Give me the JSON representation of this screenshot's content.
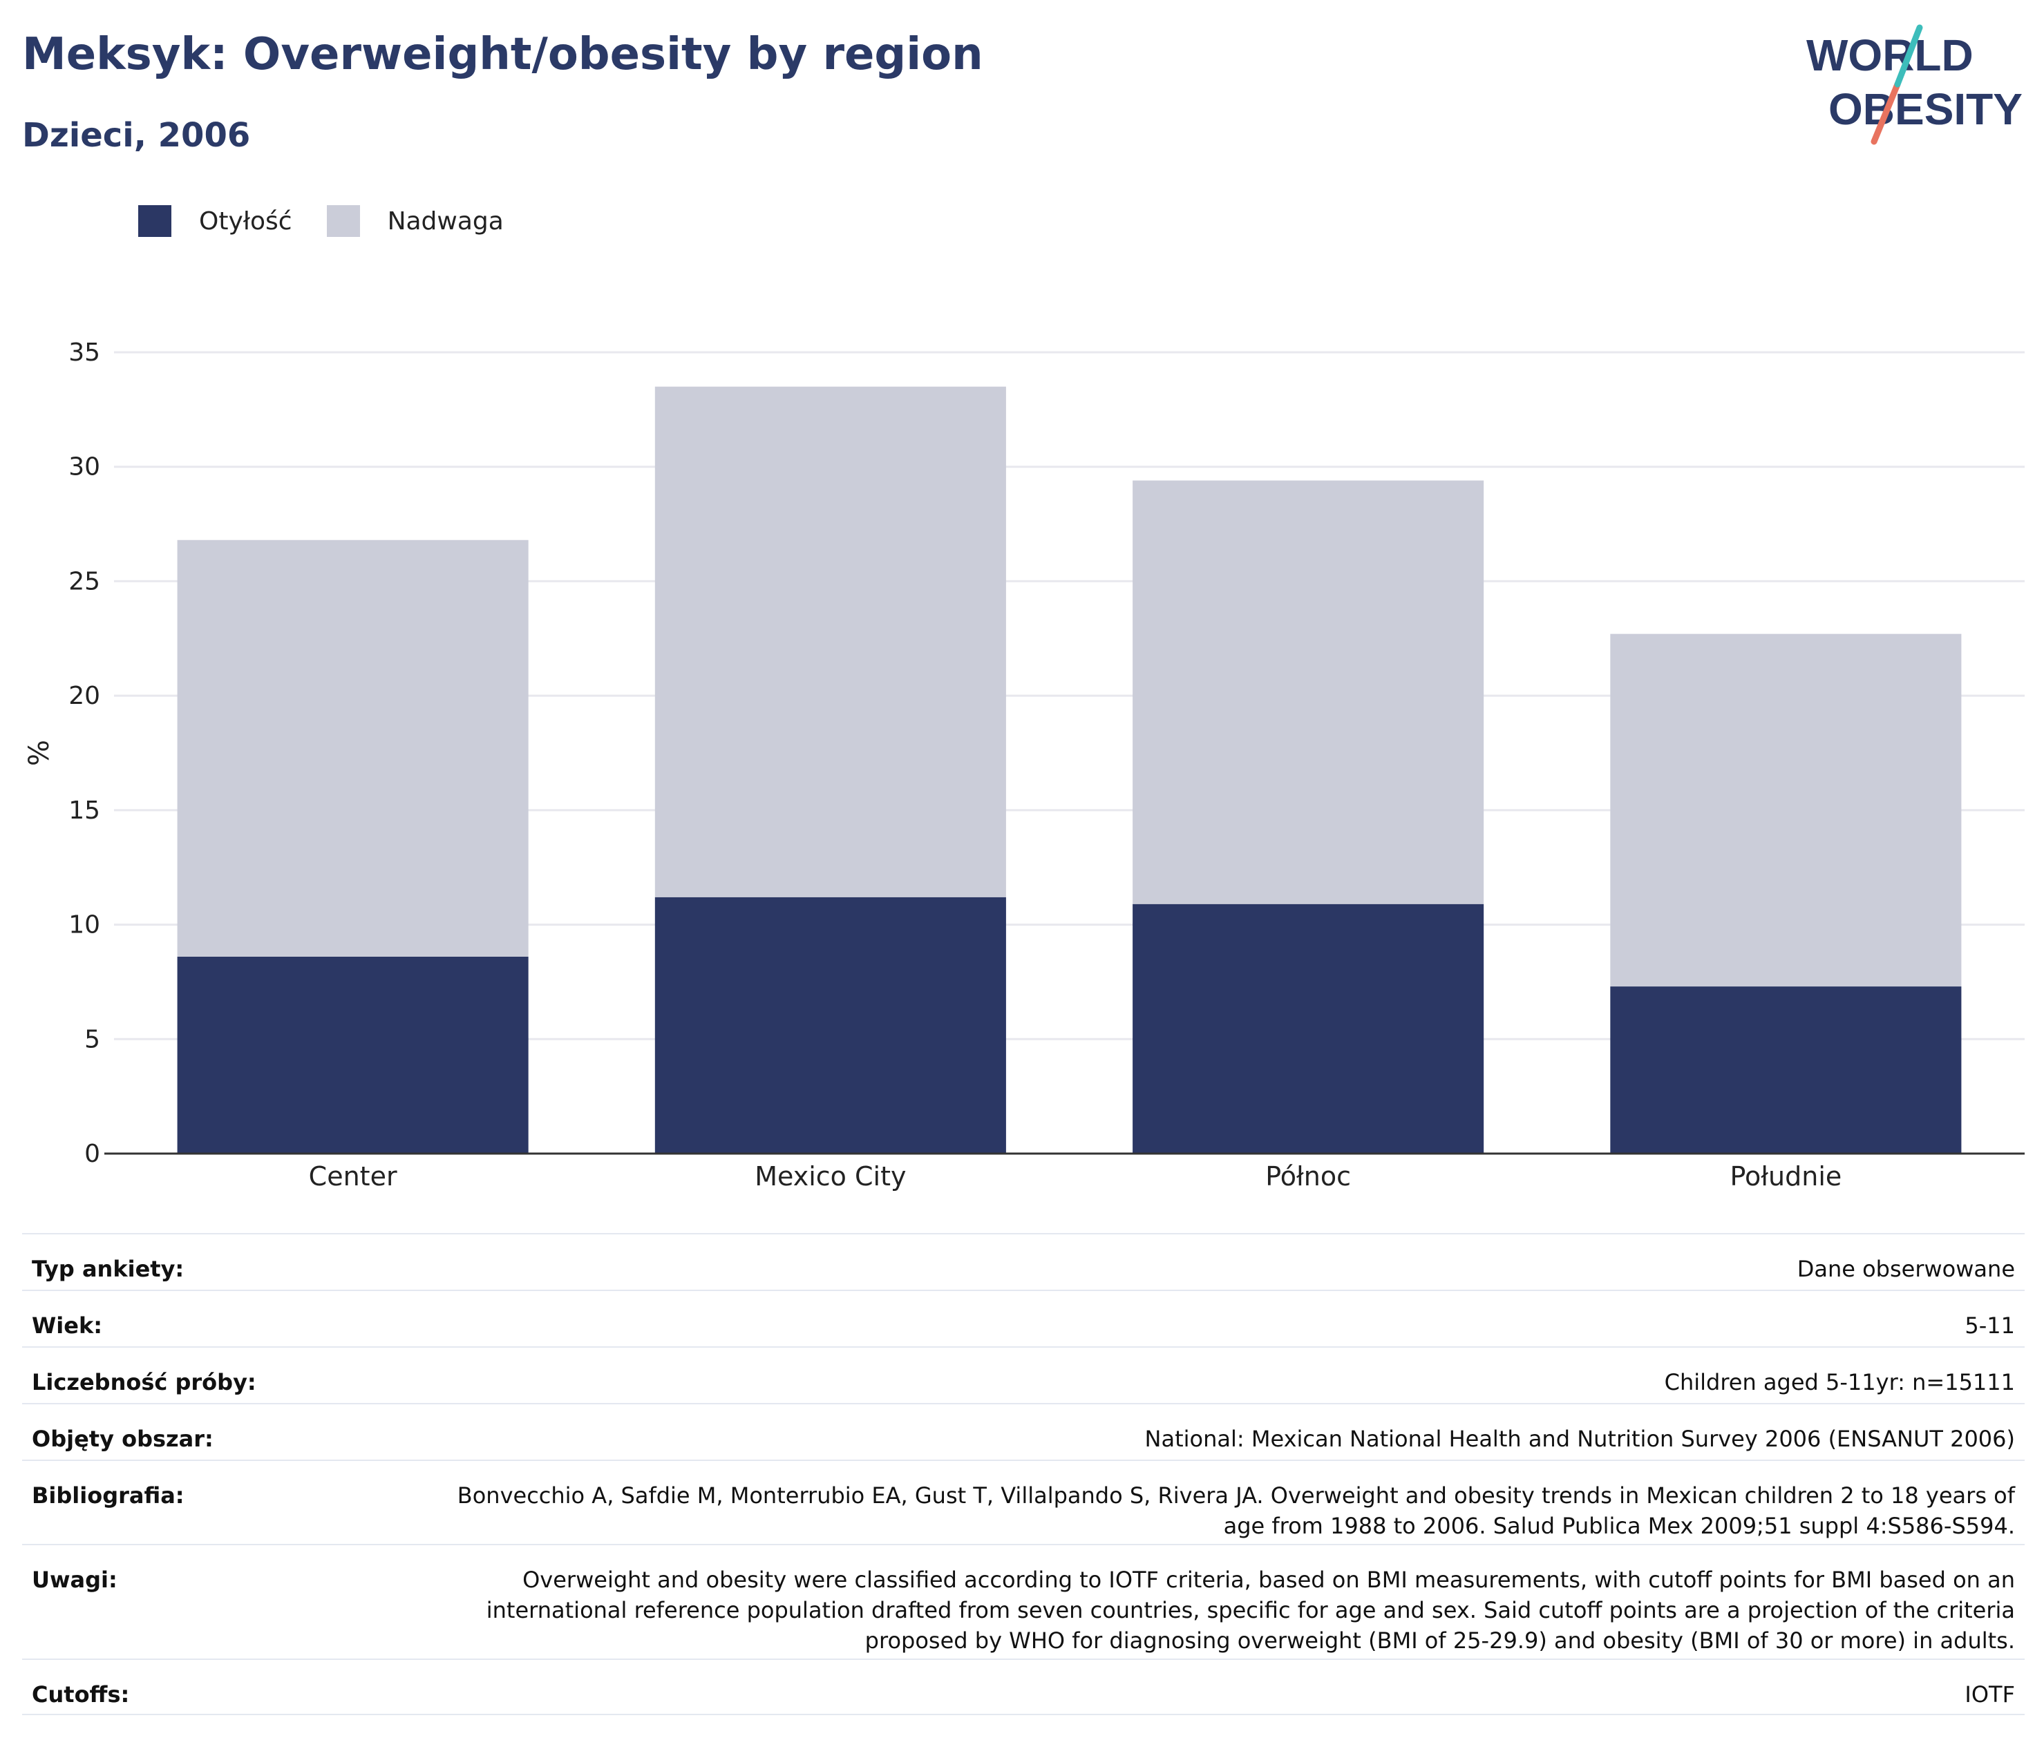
{
  "title": "Meksyk: Overweight/obesity by region",
  "subtitle": "Dzieci, 2006",
  "logo": {
    "line1": "WORLD",
    "line2": "OBESITY"
  },
  "colors": {
    "obesity": "#2b3764",
    "overweight": "#cbcdd9",
    "title": "#2b3a67",
    "grid": "#e8e8ee",
    "axis": "#333333"
  },
  "chart_data": {
    "type": "bar",
    "stacked": true,
    "categories": [
      "Center",
      "Mexico City",
      "Północ",
      "Południe"
    ],
    "series": [
      {
        "name": "Otyłość",
        "values": [
          8.6,
          11.2,
          10.9,
          7.3
        ]
      },
      {
        "name": "Nadwaga",
        "values": [
          18.2,
          22.3,
          18.5,
          15.4
        ]
      }
    ],
    "ylabel": "%",
    "xlabel": "",
    "ylim": [
      0,
      35
    ],
    "yticks": [
      0,
      5,
      10,
      15,
      20,
      25,
      30,
      35
    ],
    "grid": true,
    "legend": "top-left"
  },
  "meta": [
    {
      "label": "Typ ankiety:",
      "value": "Dane obserwowane"
    },
    {
      "label": "Wiek:",
      "value": "5-11"
    },
    {
      "label": "Liczebność próby:",
      "value": "Children aged 5-11yr: n=15111"
    },
    {
      "label": "Objęty obszar:",
      "value": "National: Mexican National Health and Nutrition Survey 2006 (ENSANUT 2006)"
    },
    {
      "label": "Bibliografia:",
      "value": "Bonvecchio A, Safdie M, Monterrubio EA, Gust T, Villalpando S, Rivera JA. Overweight and obesity trends in Mexican children 2 to 18 years of age from 1988 to 2006. Salud Publica Mex 2009;51 suppl 4:S586-S594."
    },
    {
      "label": "Uwagi:",
      "value": "Overweight and obesity were classified according to IOTF criteria, based on BMI measurements, with cutoff points for BMI based on an international reference population drafted from seven countries, specific for age and sex. Said cutoff points are a projection of the criteria proposed by WHO for diagnosing overweight (BMI of 25-29.9) and obesity (BMI of 30 or more) in adults."
    },
    {
      "label": "Cutoffs:",
      "value": "IOTF"
    }
  ]
}
